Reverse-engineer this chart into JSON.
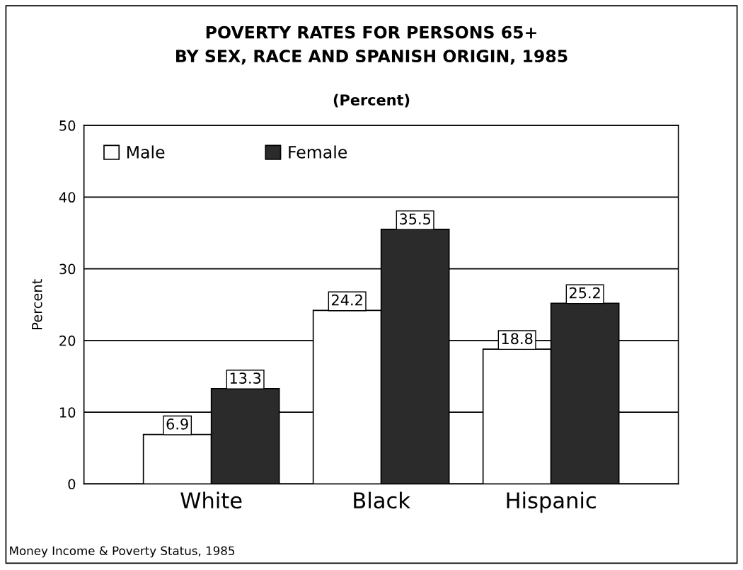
{
  "chart_data": {
    "type": "bar",
    "title": "POVERTY RATES FOR PERSONS 65+\nBY SEX, RACE AND SPANISH ORIGIN, 1985",
    "subtitle": "(Percent)",
    "ylabel": "Percent",
    "categories": [
      "White",
      "Black",
      "Hispanic"
    ],
    "series": [
      {
        "name": "Male",
        "color": "#ffffff",
        "values": [
          6.9,
          24.2,
          18.8
        ]
      },
      {
        "name": "Female",
        "color": "#2b2b2b",
        "values": [
          13.3,
          35.5,
          25.2
        ]
      }
    ],
    "ylim": [
      0,
      50
    ],
    "yticks": [
      0,
      10,
      20,
      30,
      40,
      50
    ],
    "grid": "y",
    "legend": "top left",
    "data_labels": true,
    "annotations": [
      "Money Income & Poverty Status, 1985"
    ]
  }
}
